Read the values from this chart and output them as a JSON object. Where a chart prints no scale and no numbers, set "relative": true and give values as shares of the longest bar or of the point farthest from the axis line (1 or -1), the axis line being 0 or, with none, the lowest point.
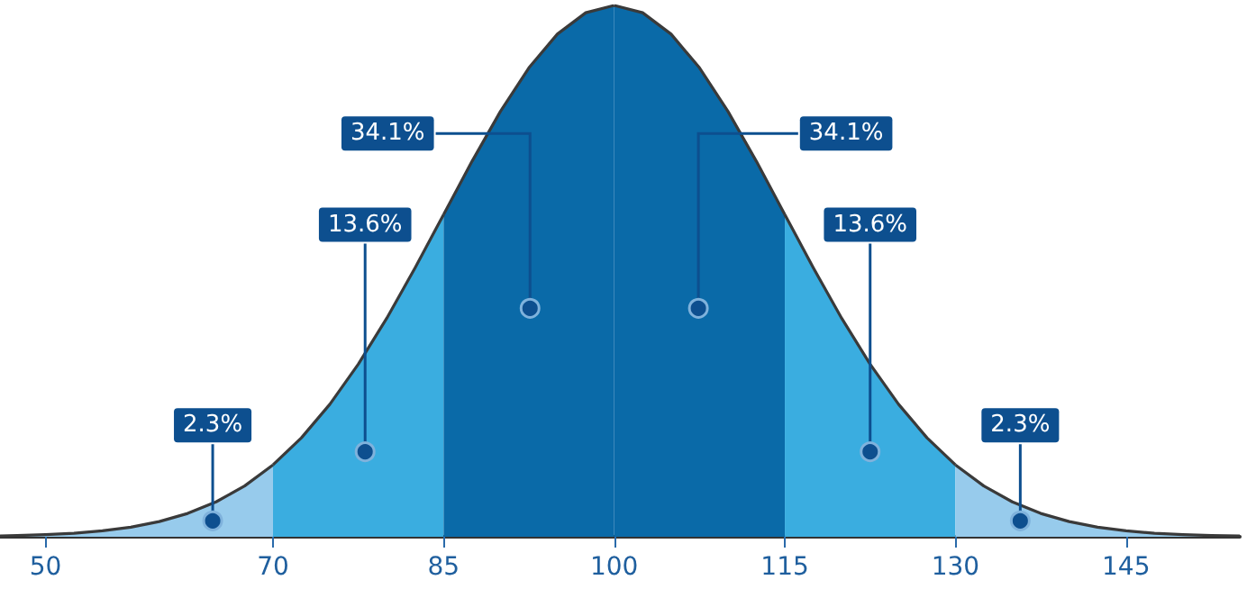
{
  "chart_data": {
    "type": "area",
    "relative": true,
    "marker": "none",
    "grid": false,
    "xlim": [
      46,
      155
    ],
    "xticks": [
      50,
      70,
      85,
      100,
      115,
      130,
      145
    ],
    "series": [
      {
        "color": "#97cbec",
        "x": [
          46,
          47.5,
          50,
          52.5,
          55,
          57.5,
          60,
          62.5,
          65,
          67.5,
          70
        ],
        "values": [
          0.0015,
          0.0022,
          0.0039,
          0.0066,
          0.0111,
          0.0181,
          0.0286,
          0.0439,
          0.0657,
          0.0956,
          0.1353
        ]
      },
      {
        "color": "#3aade0",
        "x": [
          70,
          72.5,
          75,
          77.5,
          80,
          82.5,
          85
        ],
        "values": [
          0.1353,
          0.1862,
          0.2494,
          0.3247,
          0.4111,
          0.5063,
          0.6065
        ]
      },
      {
        "color": "#0a6aa8",
        "x": [
          85,
          87.5,
          90,
          92.5,
          95,
          97.5,
          100
        ],
        "values": [
          0.6065,
          0.7066,
          0.8007,
          0.8825,
          0.946,
          0.9862,
          1
        ]
      },
      {
        "color": "#0a6aa8",
        "x": [
          100,
          102.5,
          105,
          107.5,
          110,
          112.5,
          115
        ],
        "values": [
          1,
          0.9862,
          0.946,
          0.8825,
          0.8007,
          0.7066,
          0.6065
        ]
      },
      {
        "color": "#3aade0",
        "x": [
          115,
          117.5,
          120,
          122.5,
          125,
          127.5,
          130
        ],
        "values": [
          0.6065,
          0.5063,
          0.4111,
          0.3247,
          0.2494,
          0.1862,
          0.1353
        ]
      },
      {
        "color": "#97cbec",
        "x": [
          130,
          132.5,
          135,
          137.5,
          140,
          142.5,
          145,
          147.5,
          150,
          152.5,
          155
        ],
        "values": [
          0.1353,
          0.0956,
          0.0657,
          0.0439,
          0.0286,
          0.0181,
          0.0111,
          0.0066,
          0.0039,
          0.0022,
          0.0015
        ]
      }
    ],
    "annotations": [
      {
        "text": "2.3%",
        "x": 64.7,
        "y": 0.03
      },
      {
        "text": "13.6%",
        "x": 78.1,
        "y": 0.16
      },
      {
        "text": "34.1%",
        "x": 92.6,
        "y": 0.43
      },
      {
        "text": "34.1%",
        "x": 107.4,
        "y": 0.43
      },
      {
        "text": "13.6%",
        "x": 122.5,
        "y": 0.16
      },
      {
        "text": "2.3%",
        "x": 135.7,
        "y": 0.03
      }
    ]
  }
}
